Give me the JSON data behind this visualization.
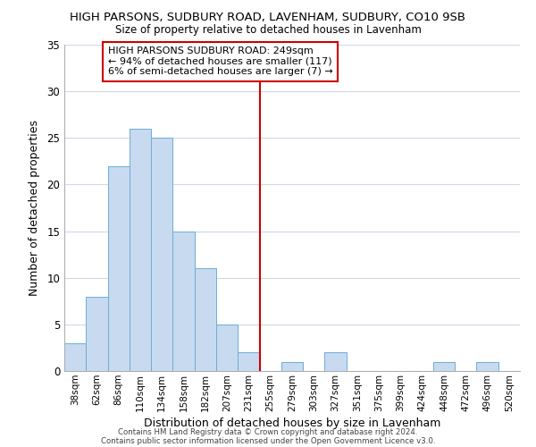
{
  "title": "HIGH PARSONS, SUDBURY ROAD, LAVENHAM, SUDBURY, CO10 9SB",
  "subtitle": "Size of property relative to detached houses in Lavenham",
  "xlabel": "Distribution of detached houses by size in Lavenham",
  "ylabel": "Number of detached properties",
  "bar_labels": [
    "38sqm",
    "62sqm",
    "86sqm",
    "110sqm",
    "134sqm",
    "158sqm",
    "182sqm",
    "207sqm",
    "231sqm",
    "255sqm",
    "279sqm",
    "303sqm",
    "327sqm",
    "351sqm",
    "375sqm",
    "399sqm",
    "424sqm",
    "448sqm",
    "472sqm",
    "496sqm",
    "520sqm"
  ],
  "bar_heights": [
    3,
    8,
    22,
    26,
    25,
    15,
    11,
    5,
    2,
    0,
    1,
    0,
    2,
    0,
    0,
    0,
    0,
    1,
    0,
    1,
    0
  ],
  "bar_color": "#c8daf0",
  "bar_edge_color": "#6baed6",
  "marker_line_color": "#cc0000",
  "annotation_line1": "HIGH PARSONS SUDBURY ROAD: 249sqm",
  "annotation_line2": "← 94% of detached houses are smaller (117)",
  "annotation_line3": "6% of semi-detached houses are larger (7) →",
  "ylim": [
    0,
    35
  ],
  "yticks": [
    0,
    5,
    10,
    15,
    20,
    25,
    30,
    35
  ],
  "footer_line1": "Contains HM Land Registry data © Crown copyright and database right 2024.",
  "footer_line2": "Contains public sector information licensed under the Open Government Licence v3.0.",
  "background_color": "#ffffff",
  "grid_color": "#d0d8e8"
}
